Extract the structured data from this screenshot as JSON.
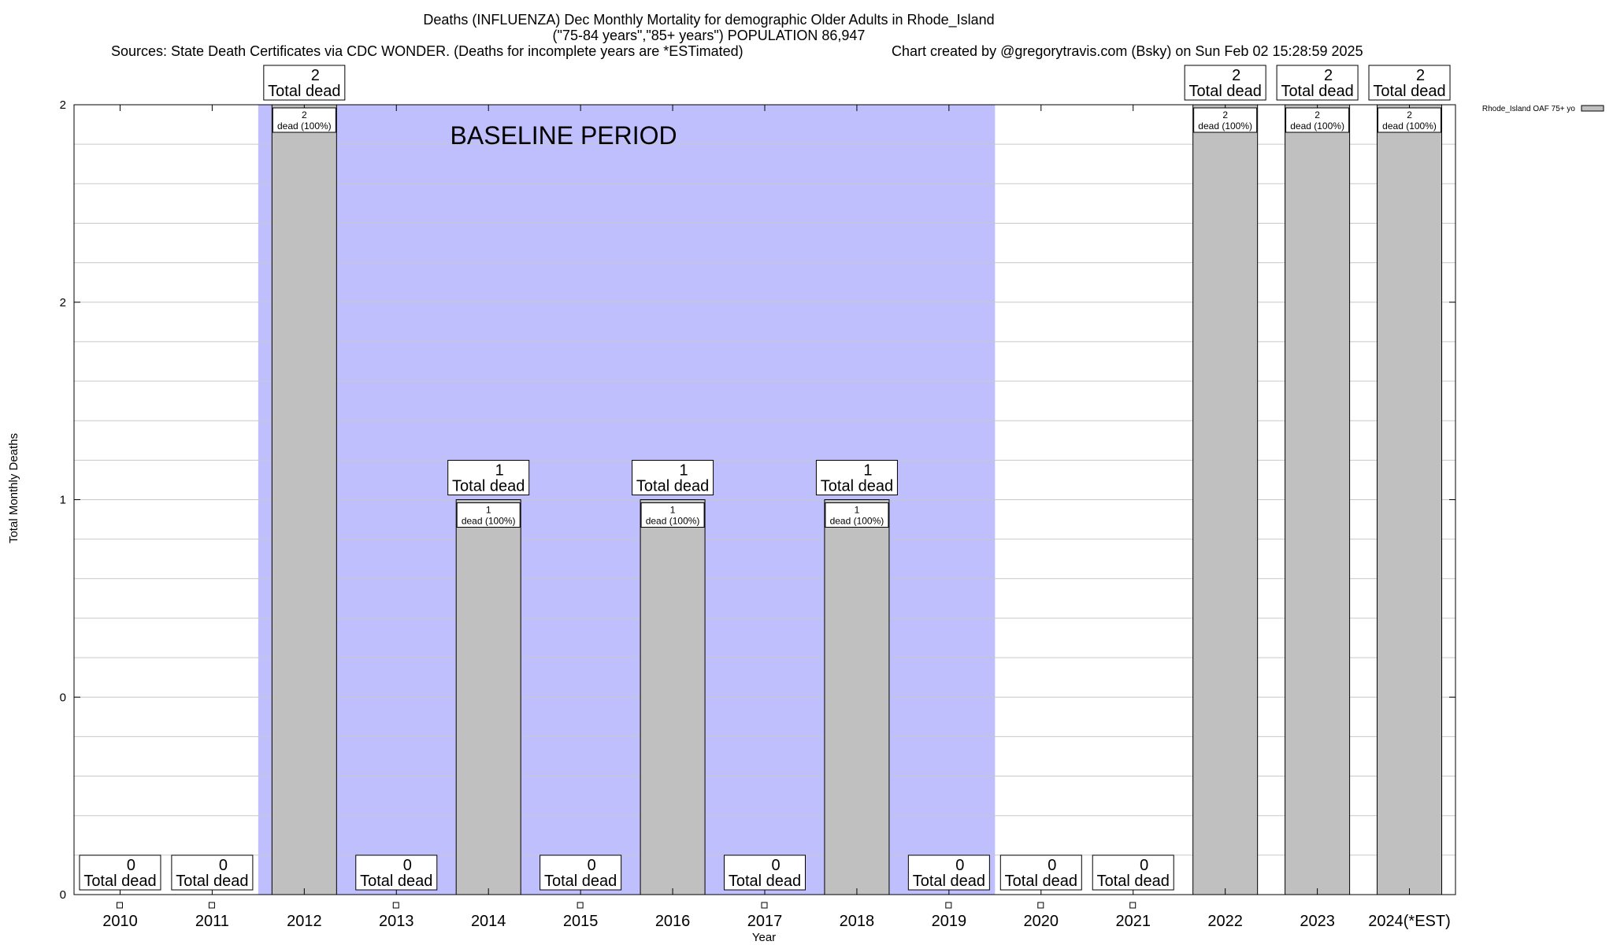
{
  "header": {
    "title_line1": "Deaths (INFLUENZA) Dec Monthly Mortality for demographic Older Adults in Rhode_Island",
    "title_line2": "(\"75-84 years\",\"85+ years\") POPULATION 86,947",
    "sources": "Sources: State Death Certificates via CDC WONDER. (Deaths for incomplete years are *ESTimated)",
    "credit": "Chart created by @gregorytravis.com (Bsky) on Sun Feb 02 15:28:59 2025"
  },
  "baseline_label": "BASELINE PERIOD",
  "legend_label": "Rhode_Island OAF 75+ yo",
  "total_label": "Total dead",
  "inner_suffix": "dead (100%)",
  "colors": {
    "bar": "#c0c0c0",
    "baseline": "#bfbffe",
    "grid": "#c8c8c8"
  },
  "chart_data": {
    "type": "bar",
    "title": "Deaths (INFLUENZA) Dec Monthly Mortality for demographic Older Adults in Rhode_Island",
    "xlabel": "Year",
    "ylabel": "Total Monthly Deaths",
    "categories": [
      "2010",
      "2011",
      "2012",
      "2013",
      "2014",
      "2015",
      "2016",
      "2017",
      "2018",
      "2019",
      "2020",
      "2021",
      "2022",
      "2023",
      "2024(*EST)"
    ],
    "series": [
      {
        "name": "Rhode_Island OAF 75+ yo",
        "values": [
          0,
          0,
          2,
          0,
          1,
          0,
          1,
          0,
          1,
          0,
          0,
          0,
          2,
          2,
          2
        ]
      }
    ],
    "ylim": [
      0,
      2
    ],
    "yticks": [
      {
        "value": 0,
        "label": "0"
      },
      {
        "value": 0.5,
        "label": "0"
      },
      {
        "value": 1,
        "label": "1"
      },
      {
        "value": 1.5,
        "label": "2"
      },
      {
        "value": 2,
        "label": "2"
      }
    ],
    "baseline_period": [
      "2012",
      "2019"
    ],
    "grid": true,
    "legend": "top-right"
  }
}
